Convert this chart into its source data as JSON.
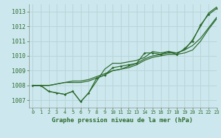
{
  "title": "Graphe pression niveau de la mer (hPa)",
  "background_color": "#cce8ee",
  "grid_color": "#b8d4d8",
  "line_color": "#2d6a2d",
  "xlim": [
    -0.5,
    23
  ],
  "ylim": [
    1006.5,
    1013.5
  ],
  "yticks": [
    1007,
    1008,
    1009,
    1010,
    1011,
    1012,
    1013
  ],
  "xticks": [
    0,
    1,
    2,
    3,
    4,
    5,
    6,
    7,
    8,
    9,
    10,
    11,
    12,
    13,
    14,
    15,
    16,
    17,
    18,
    19,
    20,
    21,
    22,
    23
  ],
  "series": [
    [
      1008.0,
      1008.0,
      1007.6,
      1007.5,
      1007.4,
      1007.6,
      1006.9,
      1007.5,
      1008.5,
      1008.7,
      1009.2,
      1009.3,
      1009.4,
      1009.5,
      1010.2,
      1010.2,
      1010.1,
      1010.3,
      1010.1,
      1010.5,
      1011.0,
      1012.1,
      1012.8,
      1013.2
    ],
    [
      1008.0,
      1008.0,
      1007.6,
      1007.5,
      1007.4,
      1007.6,
      1006.9,
      1007.5,
      1008.3,
      1009.1,
      1009.5,
      1009.5,
      1009.6,
      1009.7,
      1009.9,
      1010.3,
      1010.2,
      1010.3,
      1010.2,
      1010.4,
      1011.1,
      1012.0,
      1012.9,
      1013.3
    ],
    [
      1008.0,
      1008.0,
      1008.0,
      1008.1,
      1008.2,
      1008.2,
      1008.2,
      1008.3,
      1008.5,
      1008.7,
      1009.0,
      1009.1,
      1009.2,
      1009.4,
      1009.7,
      1009.9,
      1010.0,
      1010.1,
      1010.1,
      1010.2,
      1010.4,
      1011.0,
      1011.8,
      1012.5
    ],
    [
      1008.0,
      1008.0,
      1008.0,
      1008.1,
      1008.2,
      1008.3,
      1008.3,
      1008.4,
      1008.6,
      1008.8,
      1009.0,
      1009.1,
      1009.3,
      1009.5,
      1009.8,
      1010.0,
      1010.1,
      1010.2,
      1010.2,
      1010.4,
      1010.7,
      1011.2,
      1011.9,
      1012.6
    ]
  ]
}
